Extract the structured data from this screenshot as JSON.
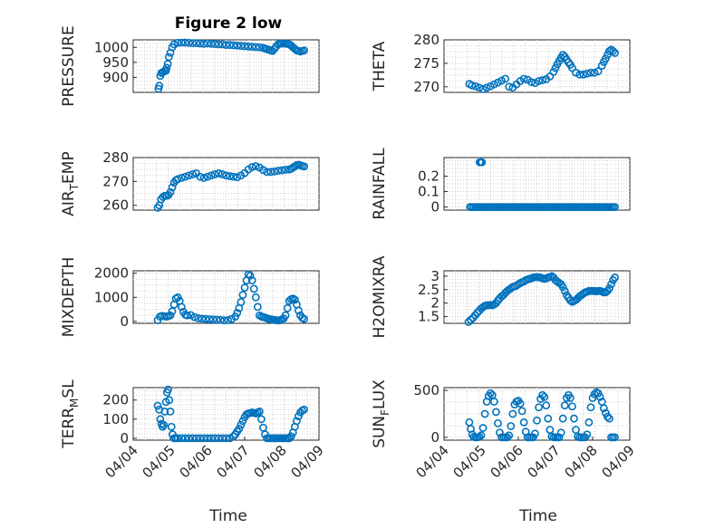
{
  "figure": {
    "title": "Figure 2 low",
    "xlabel": "Time",
    "marker_color": "#0072BD"
  },
  "chart_data": [
    {
      "type": "scatter",
      "ylabel": "PRESSURE",
      "xlabel": "",
      "xlim": [
        0,
        5
      ],
      "ylim": [
        850,
        1025
      ],
      "yticks": [
        "900",
        "950",
        "1000"
      ],
      "xticks": [],
      "x": [
        0.68,
        0.7,
        0.73,
        0.76,
        0.8,
        0.85,
        0.88,
        0.9,
        0.93,
        0.96,
        1.0,
        1.05,
        1.1,
        1.2,
        1.3,
        1.4,
        1.5,
        1.6,
        1.7,
        1.8,
        1.9,
        2.0,
        2.1,
        2.2,
        2.3,
        2.4,
        2.5,
        2.6,
        2.7,
        2.8,
        2.9,
        3.0,
        3.1,
        3.2,
        3.3,
        3.4,
        3.5,
        3.55,
        3.6,
        3.65,
        3.7,
        3.75,
        3.8,
        3.85,
        3.9,
        3.95,
        4.0,
        4.05,
        4.1,
        4.15,
        4.2,
        4.25,
        4.3,
        4.35,
        4.4,
        4.45,
        4.5,
        4.55,
        4.6
      ],
      "y": [
        862,
        872,
        905,
        915,
        918,
        921,
        922,
        932,
        945,
        968,
        982,
        1000,
        1010,
        1015,
        1016,
        1016,
        1015,
        1014,
        1014,
        1013,
        1012,
        1013,
        1012,
        1011,
        1010,
        1010,
        1008,
        1008,
        1007,
        1006,
        1005,
        1004,
        1003,
        1002,
        1001,
        1000,
        998,
        996,
        994,
        992,
        990,
        988,
        995,
        1003,
        1010,
        1012,
        1013,
        1013,
        1012,
        1012,
        1010,
        1006,
        1000,
        995,
        990,
        988,
        986,
        988,
        990
      ]
    },
    {
      "type": "scatter",
      "ylabel": "THETA",
      "xlabel": "",
      "xlim": [
        0,
        5
      ],
      "ylim": [
        268.8,
        280
      ],
      "yticks": [
        "270",
        "275",
        "280"
      ],
      "xticks": [],
      "x": [
        0.68,
        0.75,
        0.85,
        0.95,
        1.05,
        1.15,
        1.25,
        1.35,
        1.45,
        1.55,
        1.65,
        1.75,
        1.85,
        1.95,
        2.05,
        2.15,
        2.25,
        2.35,
        2.45,
        2.55,
        2.65,
        2.75,
        2.85,
        2.95,
        3.0,
        3.05,
        3.1,
        3.15,
        3.2,
        3.25,
        3.3,
        3.35,
        3.4,
        3.45,
        3.55,
        3.65,
        3.75,
        3.85,
        3.95,
        4.05,
        4.15,
        4.25,
        4.3,
        4.35,
        4.4,
        4.45,
        4.5,
        4.55,
        4.6
      ],
      "y": [
        270.6,
        270.3,
        270.1,
        269.8,
        269.5,
        269.8,
        270.1,
        270.5,
        270.9,
        271.3,
        271.7,
        270.0,
        269.8,
        270.5,
        271.2,
        271.7,
        271.5,
        271.0,
        270.8,
        271.2,
        271.4,
        271.6,
        272.2,
        273.2,
        274.0,
        274.8,
        275.5,
        276.2,
        276.8,
        276.4,
        275.8,
        275.2,
        274.7,
        274.0,
        273.0,
        272.6,
        272.6,
        272.8,
        273.0,
        273.0,
        273.3,
        274.5,
        275.3,
        276.0,
        276.8,
        277.6,
        277.9,
        277.6,
        277.2
      ]
    },
    {
      "type": "scatter",
      "ylabel": "AIR_TEMP",
      "xlabel": "",
      "xlim": [
        0,
        5
      ],
      "ylim": [
        258,
        280
      ],
      "yticks": [
        "260",
        "270",
        "280"
      ],
      "xticks": [],
      "x": [
        0.66,
        0.7,
        0.75,
        0.8,
        0.85,
        0.9,
        0.95,
        1.0,
        1.05,
        1.1,
        1.15,
        1.2,
        1.3,
        1.4,
        1.5,
        1.6,
        1.7,
        1.8,
        1.9,
        2.0,
        2.1,
        2.2,
        2.3,
        2.4,
        2.5,
        2.6,
        2.7,
        2.8,
        2.9,
        3.0,
        3.1,
        3.2,
        3.3,
        3.4,
        3.5,
        3.6,
        3.7,
        3.8,
        3.9,
        4.0,
        4.1,
        4.2,
        4.25,
        4.3,
        4.35,
        4.4,
        4.45,
        4.5,
        4.55,
        4.6
      ],
      "y": [
        259.0,
        260.0,
        262.5,
        263.5,
        264.0,
        264.0,
        264.3,
        265.5,
        267.5,
        269.5,
        270.5,
        271.0,
        271.5,
        272.0,
        272.5,
        273.0,
        273.4,
        272.0,
        271.5,
        272.0,
        272.5,
        273.0,
        273.4,
        273.0,
        272.5,
        272.2,
        272.0,
        271.8,
        272.5,
        273.5,
        275.0,
        276.0,
        276.4,
        275.8,
        274.8,
        274.0,
        274.0,
        274.2,
        274.5,
        274.7,
        274.9,
        275.0,
        275.3,
        275.8,
        276.3,
        276.8,
        277.0,
        276.8,
        276.5,
        276.3
      ]
    },
    {
      "type": "scatter",
      "ylabel": "RAINFALL",
      "xlabel": "",
      "xlim": [
        0,
        5
      ],
      "ylim": [
        -0.02,
        0.32
      ],
      "yticks": [
        "0",
        "0.1",
        "0.2"
      ],
      "xticks": [],
      "x": [
        0.7,
        0.75,
        0.8,
        0.85,
        0.9,
        0.95,
        1.0,
        1.05,
        1.1,
        1.15,
        1.2,
        1.25,
        1.3,
        1.35,
        1.4,
        1.45,
        1.5,
        1.55,
        1.6,
        1.65,
        1.7,
        1.75,
        1.8,
        1.85,
        1.9,
        1.95,
        2.0,
        2.05,
        2.1,
        2.15,
        2.2,
        2.25,
        2.3,
        2.35,
        2.4,
        2.45,
        2.5,
        2.55,
        2.6,
        2.65,
        2.7,
        2.75,
        2.8,
        2.85,
        2.9,
        2.95,
        3.0,
        3.05,
        3.1,
        3.15,
        3.2,
        3.25,
        3.3,
        3.35,
        3.4,
        3.45,
        3.5,
        3.55,
        3.6,
        3.65,
        3.7,
        3.75,
        3.8,
        3.85,
        3.9,
        3.95,
        4.0,
        4.05,
        4.1,
        4.15,
        4.2,
        4.25,
        4.3,
        4.35,
        4.4,
        4.45,
        4.5,
        4.55,
        4.6,
        0.96,
        0.99,
        1.02
      ],
      "y": [
        0,
        0,
        0,
        0,
        0,
        0,
        0,
        0,
        0,
        0,
        0,
        0,
        0,
        0,
        0,
        0,
        0,
        0,
        0,
        0,
        0,
        0,
        0,
        0,
        0,
        0,
        0,
        0,
        0,
        0,
        0,
        0,
        0,
        0,
        0,
        0,
        0,
        0,
        0,
        0,
        0,
        0,
        0,
        0,
        0,
        0,
        0,
        0,
        0,
        0,
        0,
        0,
        0,
        0,
        0,
        0,
        0,
        0,
        0,
        0,
        0,
        0,
        0,
        0,
        0,
        0,
        0,
        0,
        0,
        0,
        0,
        0,
        0,
        0,
        0,
        0,
        0,
        0,
        0,
        0.29,
        0.29,
        0.29
      ]
    },
    {
      "type": "scatter",
      "ylabel": "MIXDEPTH",
      "xlabel": "",
      "xlim": [
        0,
        5
      ],
      "ylim": [
        -80,
        2100
      ],
      "yticks": [
        "0",
        "1000",
        "2000"
      ],
      "xticks": [],
      "x": [
        0.66,
        0.72,
        0.78,
        0.84,
        0.9,
        0.95,
        1.0,
        1.05,
        1.1,
        1.15,
        1.2,
        1.25,
        1.3,
        1.35,
        1.4,
        1.45,
        1.55,
        1.65,
        1.75,
        1.85,
        1.95,
        2.05,
        2.15,
        2.25,
        2.35,
        2.45,
        2.55,
        2.65,
        2.75,
        2.8,
        2.85,
        2.9,
        2.95,
        3.0,
        3.05,
        3.1,
        3.15,
        3.2,
        3.25,
        3.3,
        3.35,
        3.4,
        3.45,
        3.5,
        3.55,
        3.6,
        3.65,
        3.7,
        3.75,
        3.8,
        3.85,
        3.9,
        3.95,
        4.0,
        4.05,
        4.1,
        4.15,
        4.2,
        4.25,
        4.3,
        4.35,
        4.4,
        4.45,
        4.5,
        4.55,
        4.6
      ],
      "y": [
        50,
        200,
        230,
        210,
        200,
        220,
        250,
        420,
        700,
        950,
        1000,
        850,
        600,
        400,
        280,
        250,
        260,
        180,
        130,
        110,
        100,
        90,
        80,
        70,
        60,
        40,
        50,
        100,
        200,
        350,
        550,
        800,
        1100,
        1400,
        1700,
        1950,
        1900,
        1700,
        1350,
        1000,
        600,
        250,
        200,
        180,
        160,
        130,
        100,
        90,
        70,
        60,
        50,
        40,
        50,
        80,
        120,
        250,
        550,
        850,
        920,
        950,
        900,
        700,
        450,
        250,
        150,
        100
      ]
    },
    {
      "type": "scatter",
      "ylabel": "H2OMIXRA",
      "xlabel": "",
      "xlim": [
        0,
        5
      ],
      "ylim": [
        1.25,
        3.2
      ],
      "yticks": [
        "1.5",
        "2",
        "2.5",
        "3"
      ],
      "xticks": [],
      "x": [
        0.66,
        0.72,
        0.78,
        0.84,
        0.9,
        0.95,
        1.0,
        1.05,
        1.1,
        1.15,
        1.2,
        1.25,
        1.3,
        1.35,
        1.4,
        1.45,
        1.5,
        1.55,
        1.6,
        1.65,
        1.7,
        1.75,
        1.8,
        1.85,
        1.9,
        1.95,
        2.0,
        2.05,
        2.1,
        2.15,
        2.2,
        2.25,
        2.3,
        2.35,
        2.4,
        2.45,
        2.5,
        2.55,
        2.6,
        2.65,
        2.7,
        2.75,
        2.8,
        2.85,
        2.9,
        2.95,
        3.0,
        3.05,
        3.1,
        3.15,
        3.2,
        3.25,
        3.3,
        3.35,
        3.4,
        3.45,
        3.5,
        3.55,
        3.6,
        3.65,
        3.7,
        3.75,
        3.8,
        3.85,
        3.9,
        3.95,
        4.0,
        4.05,
        4.1,
        4.15,
        4.2,
        4.25,
        4.3,
        4.35,
        4.4,
        4.45,
        4.5,
        4.55,
        4.6
      ],
      "y": [
        1.3,
        1.38,
        1.45,
        1.55,
        1.65,
        1.72,
        1.8,
        1.85,
        1.9,
        1.92,
        1.92,
        1.93,
        1.92,
        1.95,
        2.0,
        2.1,
        2.18,
        2.25,
        2.3,
        2.38,
        2.45,
        2.5,
        2.55,
        2.6,
        2.62,
        2.65,
        2.7,
        2.74,
        2.78,
        2.8,
        2.85,
        2.88,
        2.9,
        2.92,
        2.95,
        2.96,
        2.97,
        2.96,
        2.95,
        2.92,
        2.9,
        2.92,
        2.95,
        2.97,
        3.0,
        2.95,
        2.85,
        2.8,
        2.75,
        2.7,
        2.6,
        2.45,
        2.3,
        2.2,
        2.1,
        2.05,
        2.08,
        2.12,
        2.18,
        2.25,
        2.3,
        2.35,
        2.4,
        2.42,
        2.45,
        2.45,
        2.45,
        2.45,
        2.44,
        2.45,
        2.45,
        2.43,
        2.4,
        2.4,
        2.45,
        2.55,
        2.7,
        2.85,
        2.95
      ]
    },
    {
      "type": "scatter",
      "ylabel": "TERR_MSL",
      "xlabel": "Time",
      "xlim": [
        0,
        5
      ],
      "ylim": [
        -10,
        265
      ],
      "yticks": [
        "0",
        "100",
        "200"
      ],
      "xticks": [
        "04/04",
        "04/05",
        "04/06",
        "04/07",
        "04/08",
        "04/09"
      ],
      "x": [
        0.66,
        0.7,
        0.73,
        0.76,
        0.79,
        0.82,
        0.85,
        0.88,
        0.91,
        0.94,
        0.97,
        1.0,
        1.03,
        1.06,
        1.1,
        1.15,
        1.2,
        1.3,
        1.4,
        1.5,
        1.6,
        1.7,
        1.8,
        1.9,
        2.0,
        2.1,
        2.2,
        2.3,
        2.4,
        2.5,
        2.6,
        2.7,
        2.75,
        2.8,
        2.85,
        2.9,
        2.95,
        3.0,
        3.05,
        3.1,
        3.15,
        3.2,
        3.25,
        3.3,
        3.35,
        3.4,
        3.45,
        3.5,
        3.55,
        3.6,
        3.65,
        3.7,
        3.75,
        3.8,
        3.85,
        3.9,
        3.95,
        4.0,
        4.05,
        4.1,
        4.15,
        4.2,
        4.25,
        4.3,
        4.35,
        4.4,
        4.45,
        4.5,
        4.55,
        4.6
      ],
      "y": [
        170,
        150,
        100,
        75,
        60,
        70,
        140,
        190,
        240,
        255,
        200,
        140,
        60,
        20,
        0,
        0,
        0,
        0,
        0,
        0,
        0,
        0,
        0,
        0,
        0,
        0,
        0,
        0,
        0,
        0,
        0,
        10,
        20,
        35,
        50,
        70,
        90,
        110,
        125,
        130,
        132,
        135,
        133,
        130,
        135,
        140,
        100,
        55,
        20,
        0,
        0,
        0,
        0,
        0,
        0,
        0,
        0,
        0,
        0,
        0,
        0,
        0,
        10,
        30,
        60,
        90,
        115,
        135,
        145,
        150
      ]
    },
    {
      "type": "scatter",
      "ylabel": "SUN_FLUX",
      "xlabel": "Time",
      "xlim": [
        0,
        5
      ],
      "ylim": [
        -30,
        530
      ],
      "yticks": [
        "0",
        "500"
      ],
      "xticks": [
        "04/04",
        "04/05",
        "04/06",
        "04/07",
        "04/08",
        "04/09"
      ],
      "x": [
        0.68,
        0.72,
        0.76,
        0.8,
        0.85,
        0.9,
        0.95,
        1.0,
        1.05,
        1.1,
        1.15,
        1.2,
        1.25,
        1.3,
        1.35,
        1.4,
        1.45,
        1.5,
        1.55,
        1.6,
        1.65,
        1.7,
        1.75,
        1.8,
        1.85,
        1.9,
        1.95,
        2.0,
        2.05,
        2.1,
        2.15,
        2.2,
        2.25,
        2.3,
        2.35,
        2.4,
        2.45,
        2.5,
        2.55,
        2.6,
        2.65,
        2.7,
        2.75,
        2.8,
        2.85,
        2.9,
        2.95,
        3.0,
        3.05,
        3.1,
        3.15,
        3.2,
        3.25,
        3.3,
        3.35,
        3.4,
        3.45,
        3.5,
        3.55,
        3.6,
        3.65,
        3.7,
        3.75,
        3.8,
        3.85,
        3.9,
        3.95,
        4.0,
        4.05,
        4.1,
        4.15,
        4.2,
        4.25,
        4.3,
        4.35,
        4.4,
        4.45,
        4.5,
        4.55,
        4.6
      ],
      "y": [
        160,
        90,
        30,
        5,
        0,
        0,
        5,
        20,
        100,
        250,
        380,
        440,
        470,
        450,
        380,
        270,
        150,
        50,
        0,
        0,
        0,
        0,
        20,
        120,
        250,
        350,
        380,
        390,
        360,
        280,
        160,
        60,
        0,
        0,
        0,
        0,
        40,
        180,
        320,
        410,
        450,
        430,
        340,
        200,
        80,
        10,
        0,
        0,
        0,
        0,
        50,
        200,
        340,
        420,
        450,
        420,
        330,
        200,
        80,
        10,
        0,
        0,
        0,
        0,
        30,
        160,
        320,
        420,
        460,
        480,
        470,
        430,
        380,
        310,
        260,
        220,
        200,
        0,
        0,
        0
      ]
    }
  ]
}
